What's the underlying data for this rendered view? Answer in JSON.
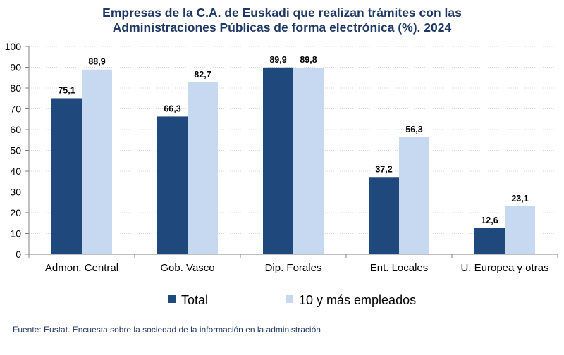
{
  "title_lines": [
    "Empresas de la C.A. de Euskadi que realizan trámites con las",
    "Administraciones Públicas de forma electrónica (%). 2024"
  ],
  "source": "Fuente: Eustat. Encuesta sobre la sociedad de la información en la administración",
  "colors": {
    "total": "#1f497d",
    "large": "#c6d9f1"
  },
  "chart_data": {
    "type": "bar",
    "title": "Empresas de la C.A. de Euskadi que realizan trámites con las Administraciones Públicas de forma electrónica (%). 2024",
    "categories": [
      "Admon. Central",
      "Gob. Vasco",
      "Dip. Forales",
      "Ent. Locales",
      "U. Europea y otras"
    ],
    "series": [
      {
        "name": "Total",
        "values": [
          75.1,
          66.3,
          89.9,
          37.2,
          12.6
        ],
        "labels": [
          "75,1",
          "66,3",
          "89,9",
          "37,2",
          "12,6"
        ]
      },
      {
        "name": "10 y más empleados",
        "values": [
          88.9,
          82.7,
          89.8,
          56.3,
          23.1
        ],
        "labels": [
          "88,9",
          "82,7",
          "89,8",
          "56,3",
          "23,1"
        ]
      }
    ],
    "ylim": [
      0,
      100
    ],
    "yticks": [
      0,
      10,
      20,
      30,
      40,
      50,
      60,
      70,
      80,
      90,
      100
    ],
    "grid": true,
    "legend": "bottom-center"
  }
}
